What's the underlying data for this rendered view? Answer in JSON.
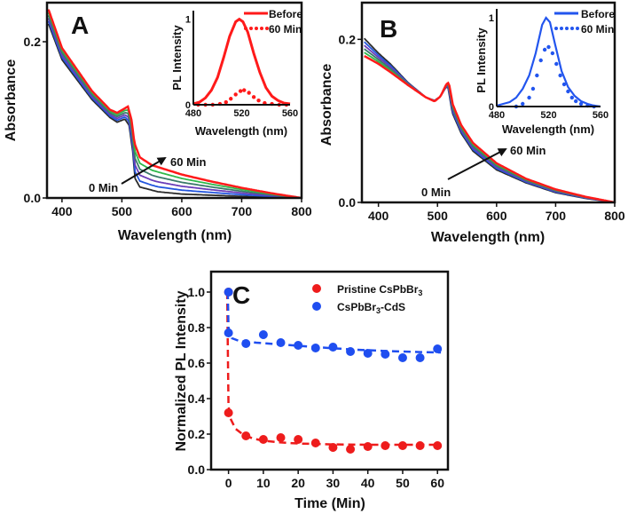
{
  "chart_data": [
    {
      "id": "A",
      "type": "line",
      "panel_label": "A",
      "xlabel": "Wavelength (nm)",
      "ylabel": "Absorbance",
      "xlim": [
        375,
        800
      ],
      "ylim": [
        0,
        0.25
      ],
      "xticks": [
        "400",
        "500",
        "600",
        "700",
        "800"
      ],
      "yticks": [
        "0.0",
        "0.2"
      ],
      "annotations": {
        "start": "0 Min",
        "end": "60 Min"
      },
      "series_colors": [
        "#2b2b2b",
        "#2255dd",
        "#6a3db8",
        "#3a7a6a",
        "#2fb84a",
        "#ff1a1a"
      ],
      "curve_0min": [
        [
          378,
          0.222
        ],
        [
          400,
          0.177
        ],
        [
          450,
          0.126
        ],
        [
          480,
          0.103
        ],
        [
          492,
          0.097
        ],
        [
          505,
          0.101
        ],
        [
          512,
          0.093
        ],
        [
          518,
          0.06
        ],
        [
          522,
          0.025
        ],
        [
          530,
          0.014
        ],
        [
          560,
          0.008
        ],
        [
          600,
          0.005
        ],
        [
          700,
          0.002
        ],
        [
          800,
          0
        ]
      ],
      "curve_60min": [
        [
          378,
          0.24
        ],
        [
          400,
          0.192
        ],
        [
          450,
          0.137
        ],
        [
          480,
          0.113
        ],
        [
          492,
          0.109
        ],
        [
          510,
          0.117
        ],
        [
          516,
          0.1
        ],
        [
          521,
          0.07
        ],
        [
          530,
          0.052
        ],
        [
          550,
          0.042
        ],
        [
          600,
          0.03
        ],
        [
          650,
          0.021
        ],
        [
          700,
          0.013
        ],
        [
          750,
          0.006
        ],
        [
          800,
          0
        ]
      ],
      "inset": {
        "type": "line",
        "xlabel": "Wavelength (nm)",
        "ylabel": "PL Intensity",
        "xlim": [
          480,
          560
        ],
        "ylim": [
          0,
          1.1
        ],
        "xticks": [
          "480",
          "520",
          "560"
        ],
        "yticks": [
          "0",
          "1"
        ],
        "color": "#ff1a1a",
        "series": [
          {
            "name": "Before",
            "style": "solid",
            "points": [
              [
                480,
                0.01
              ],
              [
                485,
                0.03
              ],
              [
                490,
                0.08
              ],
              [
                495,
                0.17
              ],
              [
                500,
                0.32
              ],
              [
                505,
                0.55
              ],
              [
                510,
                0.8
              ],
              [
                515,
                0.97
              ],
              [
                518,
                1.0
              ],
              [
                521,
                0.97
              ],
              [
                525,
                0.85
              ],
              [
                530,
                0.6
              ],
              [
                535,
                0.38
              ],
              [
                540,
                0.2
              ],
              [
                545,
                0.1
              ],
              [
                550,
                0.05
              ],
              [
                555,
                0.02
              ],
              [
                560,
                0.01
              ]
            ]
          },
          {
            "name": "60 Min",
            "style": "dotted",
            "points": [
              [
                484,
                0
              ],
              [
                490,
                0
              ],
              [
                496,
                0
              ],
              [
                502,
                0.01
              ],
              [
                507,
                0.03
              ],
              [
                511,
                0.07
              ],
              [
                515,
                0.12
              ],
              [
                519,
                0.16
              ],
              [
                522,
                0.17
              ],
              [
                526,
                0.14
              ],
              [
                530,
                0.09
              ],
              [
                534,
                0.05
              ],
              [
                539,
                0.02
              ],
              [
                545,
                0.01
              ],
              [
                551,
                0
              ],
              [
                557,
                0
              ]
            ]
          }
        ]
      }
    },
    {
      "id": "B",
      "type": "line",
      "panel_label": "B",
      "xlabel": "Wavelength (nm)",
      "ylabel": "Absorbance",
      "xlim": [
        372,
        800
      ],
      "ylim": [
        0,
        0.245
      ],
      "xticks": [
        "400",
        "500",
        "600",
        "700",
        "800"
      ],
      "yticks": [
        "0.0",
        "0.2"
      ],
      "annotations": {
        "start": "0 Min",
        "end": "60 Min"
      },
      "series_colors": [
        "#2b2b2b",
        "#2255dd",
        "#6a3db8",
        "#3a7a6a",
        "#2fb84a",
        "#ff1a1a"
      ],
      "curve_0min": [
        [
          375,
          0.202
        ],
        [
          400,
          0.183
        ],
        [
          420,
          0.17
        ],
        [
          450,
          0.147
        ],
        [
          480,
          0.129
        ],
        [
          495,
          0.125
        ],
        [
          505,
          0.13
        ],
        [
          515,
          0.142
        ],
        [
          518,
          0.14
        ],
        [
          525,
          0.11
        ],
        [
          540,
          0.085
        ],
        [
          560,
          0.063
        ],
        [
          600,
          0.04
        ],
        [
          650,
          0.024
        ],
        [
          700,
          0.012
        ],
        [
          750,
          0.005
        ],
        [
          800,
          0
        ]
      ],
      "curve_60min": [
        [
          375,
          0.18
        ],
        [
          400,
          0.17
        ],
        [
          420,
          0.16
        ],
        [
          450,
          0.144
        ],
        [
          480,
          0.129
        ],
        [
          495,
          0.124
        ],
        [
          505,
          0.13
        ],
        [
          515,
          0.145
        ],
        [
          519,
          0.147
        ],
        [
          526,
          0.12
        ],
        [
          540,
          0.095
        ],
        [
          560,
          0.073
        ],
        [
          600,
          0.048
        ],
        [
          650,
          0.029
        ],
        [
          700,
          0.016
        ],
        [
          750,
          0.007
        ],
        [
          800,
          0
        ]
      ],
      "inset": {
        "type": "line",
        "xlabel": "Wavelength (nm)",
        "ylabel": "PL Intensity",
        "xlim": [
          480,
          560
        ],
        "ylim": [
          0,
          1.1
        ],
        "xticks": [
          "480",
          "520",
          "560"
        ],
        "yticks": [
          "0",
          "1"
        ],
        "color": "#2255ee",
        "series": [
          {
            "name": "Before",
            "style": "solid",
            "points": [
              [
                480,
                0.01
              ],
              [
                490,
                0.05
              ],
              [
                495,
                0.1
              ],
              [
                500,
                0.2
              ],
              [
                505,
                0.35
              ],
              [
                510,
                0.6
              ],
              [
                515,
                0.92
              ],
              [
                518,
                1.0
              ],
              [
                521,
                0.95
              ],
              [
                525,
                0.7
              ],
              [
                530,
                0.4
              ],
              [
                535,
                0.22
              ],
              [
                540,
                0.12
              ],
              [
                545,
                0.06
              ],
              [
                550,
                0.03
              ],
              [
                555,
                0.01
              ],
              [
                560,
                0
              ]
            ]
          },
          {
            "name": "60 Min",
            "style": "dotted",
            "points": [
              [
                495,
                0
              ],
              [
                500,
                0.03
              ],
              [
                505,
                0.1
              ],
              [
                508,
                0.2
              ],
              [
                511,
                0.35
              ],
              [
                514,
                0.52
              ],
              [
                517,
                0.64
              ],
              [
                520,
                0.67
              ],
              [
                523,
                0.6
              ],
              [
                526,
                0.48
              ],
              [
                529,
                0.35
              ],
              [
                532,
                0.25
              ],
              [
                535,
                0.17
              ],
              [
                538,
                0.1
              ],
              [
                541,
                0.06
              ],
              [
                545,
                0.03
              ],
              [
                550,
                0.01
              ],
              [
                555,
                0
              ]
            ]
          }
        ]
      }
    },
    {
      "id": "C",
      "type": "scatter",
      "panel_label": "C",
      "xlabel": "Time (Min)",
      "ylabel": "Normalized PL Intensity",
      "xlim": [
        -5,
        63
      ],
      "ylim": [
        0,
        1.115
      ],
      "xticks": [
        "0",
        "10",
        "20",
        "30",
        "40",
        "50",
        "60"
      ],
      "yticks": [
        "0.0",
        "0.2",
        "0.4",
        "0.6",
        "0.8",
        "1.0"
      ],
      "legend_position": "top-right",
      "series": [
        {
          "name": "Pristine CsPbBr3",
          "name_base": "Pristine CsPbBr",
          "name_sub": "3",
          "name_tail": "",
          "color": "#ee1c1c",
          "x": [
            0,
            0,
            5,
            10,
            15,
            20,
            25,
            30,
            35,
            40,
            45,
            50,
            55,
            60
          ],
          "y": [
            1.0,
            0.32,
            0.19,
            0.17,
            0.18,
            0.17,
            0.15,
            0.125,
            0.115,
            0.13,
            0.135,
            0.135,
            0.135,
            0.135
          ],
          "fit": [
            [
              -0.4,
              1.0
            ],
            [
              -0.2,
              0.7
            ],
            [
              0,
              0.36
            ],
            [
              0.5,
              0.29
            ],
            [
              2,
              0.23
            ],
            [
              4,
              0.2
            ],
            [
              7,
              0.175
            ],
            [
              10,
              0.163
            ],
            [
              15,
              0.153
            ],
            [
              20,
              0.147
            ],
            [
              30,
              0.142
            ],
            [
              40,
              0.14
            ],
            [
              50,
              0.14
            ],
            [
              61,
              0.14
            ]
          ]
        },
        {
          "name": "CsPbBr3-CdS",
          "name_base": "CsPbBr",
          "name_sub": "3",
          "name_tail": "-CdS",
          "color": "#1f4ef0",
          "x": [
            0,
            0,
            5,
            10,
            15,
            20,
            25,
            30,
            35,
            40,
            45,
            50,
            55,
            60
          ],
          "y": [
            1.0,
            0.77,
            0.71,
            0.76,
            0.715,
            0.7,
            0.685,
            0.69,
            0.665,
            0.655,
            0.65,
            0.63,
            0.63,
            0.68
          ],
          "fit": [
            [
              -0.2,
              1.0
            ],
            [
              0,
              0.8
            ],
            [
              1,
              0.74
            ],
            [
              3,
              0.725
            ],
            [
              8,
              0.715
            ],
            [
              15,
              0.705
            ],
            [
              25,
              0.69
            ],
            [
              35,
              0.677
            ],
            [
              45,
              0.668
            ],
            [
              55,
              0.662
            ],
            [
              61,
              0.66
            ]
          ]
        }
      ]
    }
  ]
}
